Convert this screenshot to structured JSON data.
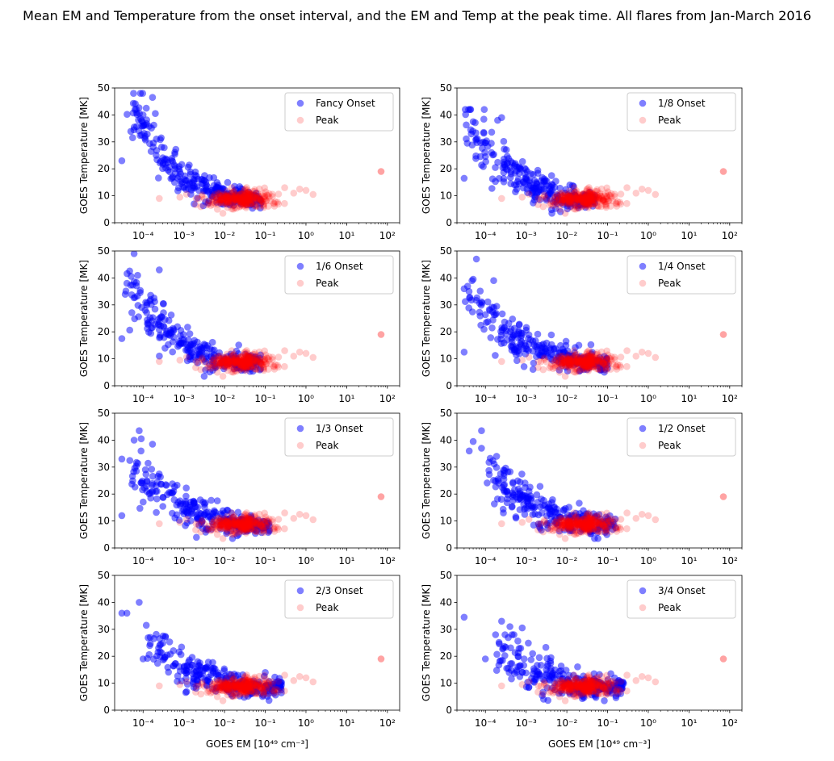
{
  "figure": {
    "title": "Mean EM and Temperature from the onset interval, and the EM and Temp at the peak time. All flares from Jan-March 2016"
  },
  "colors": {
    "onset": "#0000ff",
    "peak": "#ff0000",
    "axis": "#000000"
  },
  "chart_data": [
    {
      "type": "scatter",
      "legend": [
        "Fancy Onset",
        "Peak"
      ],
      "ylabel": "GOES Temperature [MK]",
      "xlabel": "",
      "xscale": "log",
      "xlim": [
        2e-05,
        200
      ],
      "ylim": [
        0,
        50
      ],
      "yticks": [
        0,
        10,
        20,
        30,
        40,
        50
      ],
      "xtick_labels": [
        "10⁻⁴",
        "10⁻³",
        "10⁻²",
        "10⁻¹",
        "10⁰",
        "10¹",
        "10²"
      ],
      "legend_loc": "upper right",
      "onset_seed": 11,
      "onset_lo": -4.4,
      "onset_spread": 3.3,
      "onset_tmax": 44,
      "outliers": [
        [
          0.00017,
          46.5
        ],
        [
          0.00012,
          42.5
        ],
        [
          0.0001,
          40
        ],
        [
          0.0002,
          40.5
        ],
        [
          3e-05,
          23
        ]
      ]
    },
    {
      "type": "scatter",
      "legend": [
        "1/8 Onset",
        "Peak"
      ],
      "ylabel": "GOES Temperature [MK]",
      "xlabel": "",
      "xscale": "log",
      "xlim": [
        2e-05,
        200
      ],
      "ylim": [
        0,
        50
      ],
      "yticks": [
        0,
        10,
        20,
        30,
        40,
        50
      ],
      "xtick_labels": [
        "10⁻⁴",
        "10⁻³",
        "10⁻²",
        "10⁻¹",
        "10⁰",
        "10¹",
        "10²"
      ],
      "legend_loc": "upper right",
      "onset_seed": 22,
      "onset_lo": -4.5,
      "onset_spread": 3.2,
      "onset_tmax": 38,
      "outliers": [
        [
          0.00025,
          39
        ],
        [
          0.0002,
          38
        ],
        [
          5e-05,
          37.5
        ],
        [
          3e-05,
          16.5
        ]
      ]
    },
    {
      "type": "scatter",
      "legend": [
        "1/6 Onset",
        "Peak"
      ],
      "ylabel": "GOES Temperature [MK]",
      "xlabel": "",
      "xscale": "log",
      "xlim": [
        2e-05,
        200
      ],
      "ylim": [
        0,
        50
      ],
      "yticks": [
        0,
        10,
        20,
        30,
        40,
        50
      ],
      "xtick_labels": [
        "10⁻⁴",
        "10⁻³",
        "10⁻²",
        "10⁻¹",
        "10⁰",
        "10¹",
        "10²"
      ],
      "legend_loc": "upper right",
      "onset_seed": 33,
      "onset_lo": -4.5,
      "onset_spread": 3.4,
      "onset_tmax": 40,
      "outliers": [
        [
          6e-05,
          49
        ],
        [
          0.00025,
          43
        ],
        [
          4e-05,
          38
        ],
        [
          3e-05,
          17.5
        ]
      ]
    },
    {
      "type": "scatter",
      "legend": [
        "1/4 Onset",
        "Peak"
      ],
      "ylabel": "GOES Temperature [MK]",
      "xlabel": "",
      "xscale": "log",
      "xlim": [
        2e-05,
        200
      ],
      "ylim": [
        0,
        50
      ],
      "yticks": [
        0,
        10,
        20,
        30,
        40,
        50
      ],
      "xtick_labels": [
        "10⁻⁴",
        "10⁻³",
        "10⁻²",
        "10⁻¹",
        "10⁰",
        "10¹",
        "10²"
      ],
      "legend_loc": "upper right",
      "onset_seed": 44,
      "onset_lo": -4.5,
      "onset_spread": 3.5,
      "onset_tmax": 36,
      "outliers": [
        [
          6e-05,
          47
        ],
        [
          5e-05,
          39.5
        ],
        [
          0.00016,
          39
        ],
        [
          3e-05,
          36
        ],
        [
          3e-05,
          12.5
        ]
      ]
    },
    {
      "type": "scatter",
      "legend": [
        "1/3 Onset",
        "Peak"
      ],
      "ylabel": "GOES Temperature [MK]",
      "xlabel": "",
      "xscale": "log",
      "xlim": [
        2e-05,
        200
      ],
      "ylim": [
        0,
        50
      ],
      "yticks": [
        0,
        10,
        20,
        30,
        40,
        50
      ],
      "xtick_labels": [
        "10⁻⁴",
        "10⁻³",
        "10⁻²",
        "10⁻¹",
        "10⁰",
        "10¹",
        "10²"
      ],
      "legend_loc": "upper right",
      "onset_seed": 55,
      "onset_lo": -4.4,
      "onset_spread": 3.5,
      "onset_tmax": 32,
      "outliers": [
        [
          8e-05,
          43.5
        ],
        [
          9e-05,
          40.5
        ],
        [
          6e-05,
          40
        ],
        [
          0.00017,
          38.5
        ],
        [
          3e-05,
          33
        ],
        [
          3e-05,
          12
        ]
      ]
    },
    {
      "type": "scatter",
      "legend": [
        "1/2 Onset",
        "Peak"
      ],
      "ylabel": "GOES Temperature [MK]",
      "xlabel": "",
      "xscale": "log",
      "xlim": [
        2e-05,
        200
      ],
      "ylim": [
        0,
        50
      ],
      "yticks": [
        0,
        10,
        20,
        30,
        40,
        50
      ],
      "xtick_labels": [
        "10⁻⁴",
        "10⁻³",
        "10⁻²",
        "10⁻¹",
        "10⁰",
        "10¹",
        "10²"
      ],
      "legend_loc": "upper right",
      "onset_seed": 66,
      "onset_lo": -4.0,
      "onset_spread": 3.2,
      "onset_tmax": 30,
      "outliers": [
        [
          8e-05,
          43.5
        ],
        [
          5e-05,
          39.5
        ],
        [
          8e-05,
          37
        ],
        [
          4e-05,
          36
        ]
      ]
    },
    {
      "type": "scatter",
      "legend": [
        "2/3 Onset",
        "Peak"
      ],
      "ylabel": "GOES Temperature [MK]",
      "xlabel": "GOES EM [10⁴⁹ cm⁻³]",
      "xscale": "log",
      "xlim": [
        2e-05,
        200
      ],
      "ylim": [
        0,
        50
      ],
      "yticks": [
        0,
        10,
        20,
        30,
        40,
        50
      ],
      "xtick_labels": [
        "10⁻⁴",
        "10⁻³",
        "10⁻²",
        "10⁻¹",
        "10⁰",
        "10¹",
        "10²"
      ],
      "legend_loc": "upper right",
      "onset_seed": 77,
      "onset_lo": -3.9,
      "onset_spread": 3.3,
      "onset_tmax": 25,
      "outliers": [
        [
          8e-05,
          40
        ],
        [
          4e-05,
          36
        ],
        [
          3e-05,
          36
        ],
        [
          0.00012,
          31.5
        ],
        [
          0.00015,
          27
        ],
        [
          0.0001,
          19
        ]
      ]
    },
    {
      "type": "scatter",
      "legend": [
        "3/4 Onset",
        "Peak"
      ],
      "ylabel": "GOES Temperature [MK]",
      "xlabel": "GOES EM [10⁴⁹ cm⁻³]",
      "xscale": "log",
      "xlim": [
        2e-05,
        200
      ],
      "ylim": [
        0,
        50
      ],
      "yticks": [
        0,
        10,
        20,
        30,
        40,
        50
      ],
      "xtick_labels": [
        "10⁻⁴",
        "10⁻³",
        "10⁻²",
        "10⁻¹",
        "10⁰",
        "10¹",
        "10²"
      ],
      "legend_loc": "upper right",
      "onset_seed": 88,
      "onset_lo": -3.8,
      "onset_spread": 3.2,
      "onset_tmax": 24,
      "outliers": [
        [
          3e-05,
          34.5
        ],
        [
          0.00025,
          33
        ],
        [
          0.0004,
          31
        ],
        [
          0.0008,
          30.5
        ],
        [
          0.00045,
          28
        ],
        [
          0.0001,
          19
        ]
      ]
    }
  ]
}
